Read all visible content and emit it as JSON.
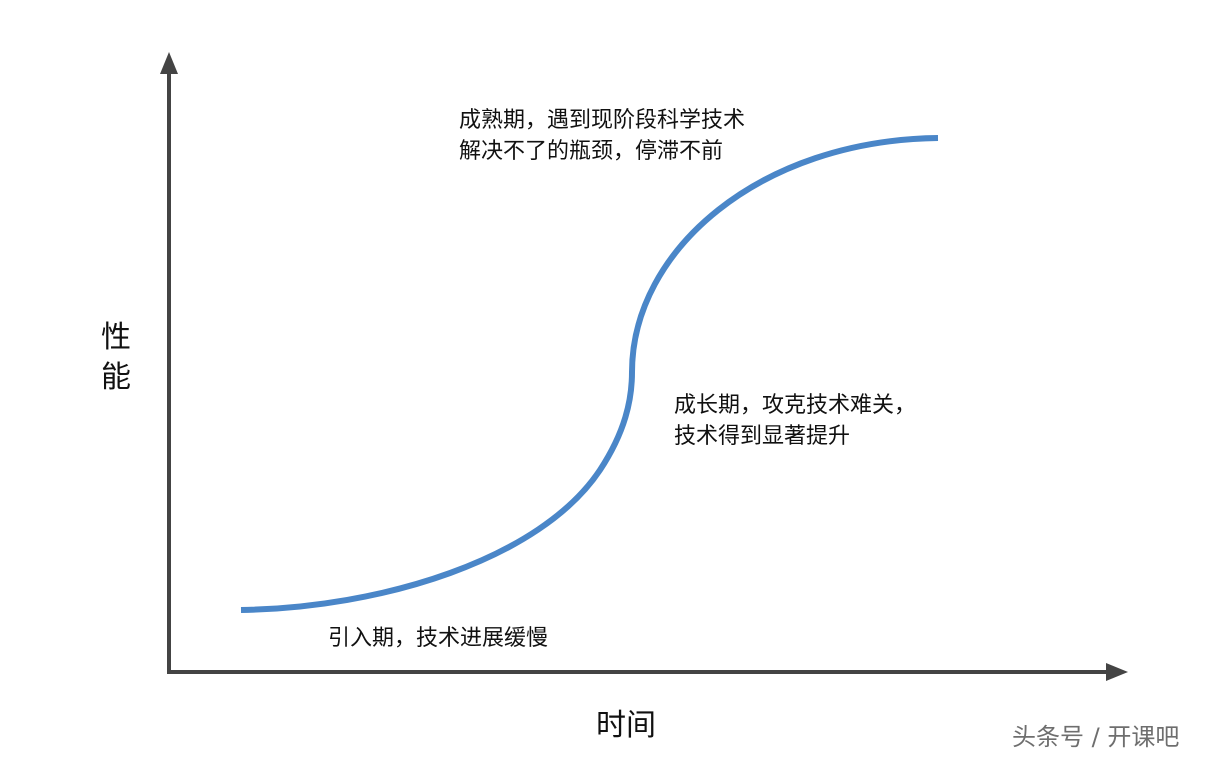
{
  "diagram": {
    "y_axis_label": [
      "性",
      "能"
    ],
    "x_axis_label": "时间",
    "stages": {
      "introduction": "引入期，技术进展缓慢",
      "growth": [
        "成长期，攻克技术难关，",
        "技术得到显著提升"
      ],
      "maturity": [
        "成熟期，遇到现阶段科学技术",
        "解决不了的瓶颈，停滞不前"
      ]
    },
    "colors": {
      "curve": "#4a86c8",
      "axis": "#444444",
      "text": "#111111"
    }
  },
  "watermark": "头条号 / 开课吧"
}
